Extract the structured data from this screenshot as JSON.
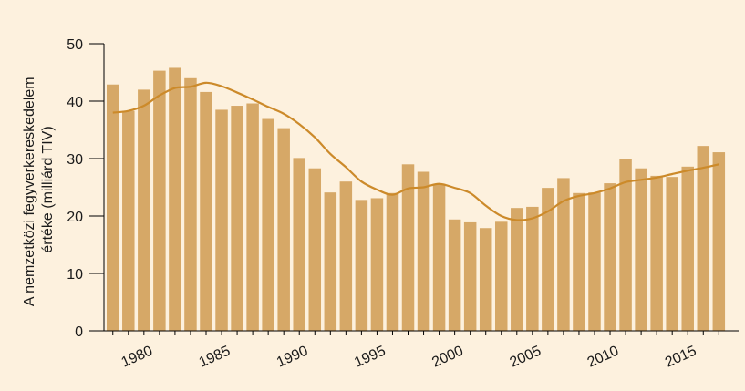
{
  "chart_data": {
    "type": "bar",
    "ylabel_line1": "A nemzetközi fegyverkereskedelem",
    "ylabel_line2": "értéke (milliárd TIV)",
    "xlabel": "",
    "ylim": [
      0,
      50
    ],
    "yticks": [
      0,
      10,
      20,
      30,
      40,
      50
    ],
    "xtick_years": [
      1980,
      1985,
      1990,
      1995,
      2000,
      2005,
      2010,
      2015
    ],
    "x": [
      1978,
      1979,
      1980,
      1981,
      1982,
      1983,
      1984,
      1985,
      1986,
      1987,
      1988,
      1989,
      1990,
      1991,
      1992,
      1993,
      1994,
      1995,
      1996,
      1997,
      1998,
      1999,
      2000,
      2001,
      2002,
      2003,
      2004,
      2005,
      2006,
      2007,
      2008,
      2009,
      2010,
      2011,
      2012,
      2013,
      2014,
      2015,
      2016,
      2017
    ],
    "series": [
      {
        "kind": "bar",
        "values": [
          42.9,
          38.3,
          42.0,
          45.3,
          45.8,
          44.0,
          41.6,
          38.5,
          39.2,
          39.6,
          36.9,
          35.3,
          30.1,
          28.3,
          24.1,
          26.0,
          22.8,
          23.1,
          24.0,
          29.0,
          27.7,
          25.6,
          19.4,
          18.9,
          17.9,
          19.0,
          21.4,
          21.6,
          24.9,
          26.6,
          24.0,
          24.1,
          25.7,
          30.0,
          28.3,
          27.0,
          26.8,
          28.6,
          32.2,
          31.1
        ],
        "color": "#d6a867"
      },
      {
        "kind": "line",
        "values": [
          38.0,
          38.3,
          39.2,
          41.0,
          42.3,
          42.5,
          43.2,
          42.6,
          41.5,
          40.3,
          39.0,
          37.8,
          36.0,
          33.7,
          30.8,
          28.5,
          26.0,
          24.6,
          23.7,
          24.8,
          25.0,
          25.6,
          24.9,
          24.0,
          21.8,
          20.0,
          19.3,
          19.6,
          20.8,
          22.6,
          23.5,
          24.0,
          24.8,
          25.9,
          26.3,
          26.7,
          27.3,
          27.9,
          28.4,
          29.0
        ],
        "color": "#cc8a2a"
      }
    ],
    "grid": false,
    "legend": "none"
  }
}
